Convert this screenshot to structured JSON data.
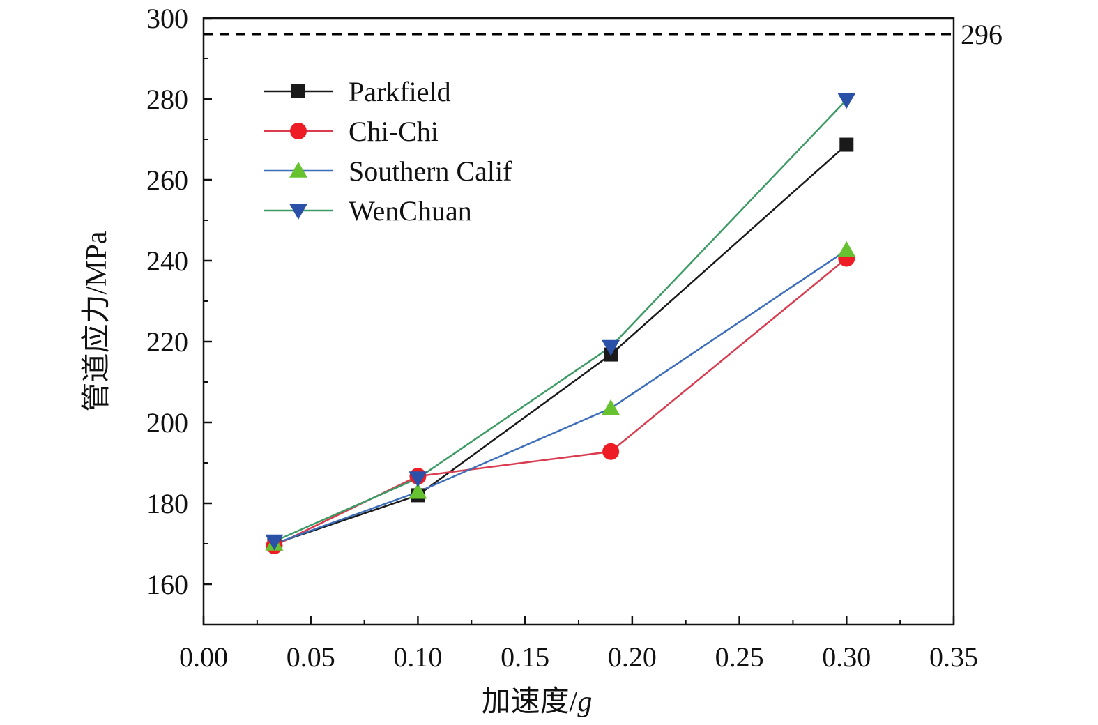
{
  "chart_data": {
    "type": "line",
    "title": "",
    "xlabel": "加速度/",
    "xlabel_italic": "g",
    "ylabel": "管道应力/MPa",
    "xlim": [
      0.0,
      0.35
    ],
    "ylim": [
      150,
      300
    ],
    "x_ticks": [
      0.0,
      0.05,
      0.1,
      0.15,
      0.2,
      0.25,
      0.3,
      0.35
    ],
    "x_tick_labels": [
      "0.00",
      "0.05",
      "0.10",
      "0.15",
      "0.20",
      "0.25",
      "0.30",
      "0.35"
    ],
    "y_ticks": [
      160,
      180,
      200,
      220,
      240,
      260,
      280,
      300
    ],
    "y_tick_labels": [
      "160",
      "180",
      "200",
      "220",
      "240",
      "260",
      "280",
      "300"
    ],
    "grid": false,
    "legend_position": "top-left",
    "reference_line": {
      "value": 296,
      "label": "296",
      "style": "dashed",
      "color": "#000000"
    },
    "series": [
      {
        "name": "Parkfield",
        "color": "#1a1a1a",
        "marker": "square",
        "marker_color": "#1a1a1a",
        "x": [
          0.033,
          0.1,
          0.19,
          0.3
        ],
        "y": [
          170.0,
          182.0,
          216.8,
          268.7
        ]
      },
      {
        "name": "Chi-Chi",
        "color": "#d93b4f",
        "marker": "circle",
        "marker_color": "#ee1c24",
        "x": [
          0.033,
          0.1,
          0.19,
          0.3
        ],
        "y": [
          169.5,
          186.7,
          192.8,
          240.6
        ]
      },
      {
        "name": "Southern Calif",
        "color": "#3b6db8",
        "marker": "triangle-up",
        "marker_color": "#66c22e",
        "x": [
          0.033,
          0.1,
          0.19,
          0.3
        ],
        "y": [
          170.0,
          182.8,
          203.5,
          242.6
        ]
      },
      {
        "name": "WenChuan",
        "color": "#3c9a64",
        "marker": "triangle-down",
        "marker_color": "#2b50a8",
        "x": [
          0.033,
          0.1,
          0.19,
          0.3
        ],
        "y": [
          170.6,
          186.2,
          218.7,
          279.8
        ]
      }
    ]
  }
}
